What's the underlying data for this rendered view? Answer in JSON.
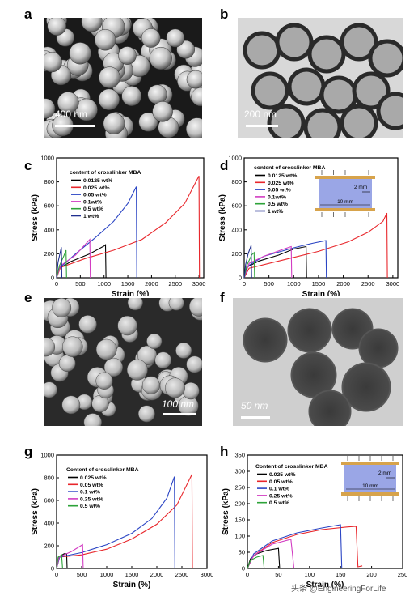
{
  "panels": {
    "a": {
      "letter": "a",
      "scale": "400 nm"
    },
    "b": {
      "letter": "b",
      "scale": "200 nm"
    },
    "c": {
      "letter": "c"
    },
    "d": {
      "letter": "d"
    },
    "e": {
      "letter": "e",
      "scale": "100 nm"
    },
    "f": {
      "letter": "f",
      "scale": "50 nm"
    },
    "g": {
      "letter": "g"
    },
    "h": {
      "letter": "h"
    }
  },
  "watermark": "头条 @EngineeringForLife",
  "inset": {
    "gap": "2 mm",
    "length": "10 mm"
  },
  "chart_data": [
    {
      "id": "c",
      "type": "line",
      "xlabel": "Strain (%)",
      "ylabel": "Stress (kPa)",
      "xlim": [
        0,
        3100
      ],
      "ylim": [
        0,
        1000
      ],
      "xticks": [
        0,
        500,
        1000,
        1500,
        2000,
        2500,
        3000
      ],
      "yticks": [
        0,
        200,
        400,
        600,
        800,
        1000
      ],
      "legend_title": "content of crosslinker MBA",
      "series": [
        {
          "name": "0.0125 wt%",
          "color": "#000000",
          "points": [
            [
              0,
              0
            ],
            [
              50,
              75
            ],
            [
              300,
              135
            ],
            [
              700,
              200
            ],
            [
              1000,
              265
            ],
            [
              1030,
              275
            ],
            [
              1040,
              0
            ]
          ]
        },
        {
          "name": "0.025 wt%",
          "color": "#e8262b",
          "points": [
            [
              0,
              0
            ],
            [
              80,
              85
            ],
            [
              600,
              160
            ],
            [
              1200,
              230
            ],
            [
              1800,
              320
            ],
            [
              2300,
              460
            ],
            [
              2700,
              620
            ],
            [
              3000,
              850
            ],
            [
              3010,
              0
            ]
          ]
        },
        {
          "name": "0.05 wt%",
          "color": "#2b45c4",
          "points": [
            [
              0,
              0
            ],
            [
              60,
              80
            ],
            [
              400,
              200
            ],
            [
              800,
              330
            ],
            [
              1200,
              470
            ],
            [
              1500,
              620
            ],
            [
              1680,
              760
            ],
            [
              1690,
              0
            ]
          ]
        },
        {
          "name": "0.1wt%",
          "color": "#d23cc2",
          "points": [
            [
              0,
              0
            ],
            [
              80,
              100
            ],
            [
              400,
              190
            ],
            [
              700,
              320
            ],
            [
              710,
              0
            ]
          ]
        },
        {
          "name": "0.5 wt%",
          "color": "#2da339",
          "points": [
            [
              0,
              0
            ],
            [
              60,
              100
            ],
            [
              150,
              180
            ],
            [
              200,
              230
            ],
            [
              210,
              0
            ]
          ]
        },
        {
          "name": "1 wt%",
          "color": "#1f2f8f",
          "points": [
            [
              0,
              0
            ],
            [
              30,
              130
            ],
            [
              70,
              200
            ],
            [
              100,
              255
            ],
            [
              110,
              0
            ]
          ]
        }
      ]
    },
    {
      "id": "d",
      "type": "line",
      "xlabel": "Strain (%)",
      "ylabel": "Stress (kPa)",
      "xlim": [
        0,
        3100
      ],
      "ylim": [
        0,
        1000
      ],
      "xticks": [
        0,
        500,
        1000,
        1500,
        2000,
        2500,
        3000
      ],
      "yticks": [
        0,
        200,
        400,
        600,
        800,
        1000
      ],
      "legend_title": "content of crosslinker MBA",
      "series": [
        {
          "name": "0.0125 wt%",
          "color": "#000000",
          "points": [
            [
              0,
              0
            ],
            [
              60,
              90
            ],
            [
              300,
              140
            ],
            [
              700,
              190
            ],
            [
              1000,
              240
            ],
            [
              1250,
              260
            ],
            [
              1260,
              0
            ]
          ]
        },
        {
          "name": "0.025 wt%",
          "color": "#e8262b",
          "points": [
            [
              0,
              0
            ],
            [
              100,
              80
            ],
            [
              800,
              150
            ],
            [
              1500,
              220
            ],
            [
              2100,
              300
            ],
            [
              2500,
              380
            ],
            [
              2800,
              470
            ],
            [
              2880,
              540
            ],
            [
              2890,
              0
            ]
          ]
        },
        {
          "name": "0.05 wt%",
          "color": "#2b45c4",
          "points": [
            [
              0,
              0
            ],
            [
              80,
              100
            ],
            [
              400,
              180
            ],
            [
              1000,
              250
            ],
            [
              1400,
              290
            ],
            [
              1650,
              310
            ],
            [
              1660,
              0
            ]
          ]
        },
        {
          "name": "0.1wt%",
          "color": "#d23cc2",
          "points": [
            [
              0,
              0
            ],
            [
              100,
              120
            ],
            [
              400,
              180
            ],
            [
              800,
              240
            ],
            [
              950,
              260
            ],
            [
              960,
              0
            ]
          ]
        },
        {
          "name": "0.5 wt%",
          "color": "#2da339",
          "points": [
            [
              0,
              0
            ],
            [
              50,
              100
            ],
            [
              150,
              190
            ],
            [
              200,
              210
            ],
            [
              210,
              0
            ]
          ]
        },
        {
          "name": "1 wt%",
          "color": "#1f2f8f",
          "points": [
            [
              0,
              0
            ],
            [
              30,
              110
            ],
            [
              80,
              200
            ],
            [
              140,
              270
            ],
            [
              150,
              0
            ]
          ]
        }
      ]
    },
    {
      "id": "g",
      "type": "line",
      "xlabel": "Strain (%)",
      "ylabel": "Stress (kPa)",
      "xlim": [
        0,
        3000
      ],
      "ylim": [
        0,
        1000
      ],
      "xticks": [
        0,
        500,
        1000,
        1500,
        2000,
        2500,
        3000
      ],
      "yticks": [
        0,
        200,
        400,
        600,
        800,
        1000
      ],
      "legend_title": "Content of crosslinker MBA",
      "series": [
        {
          "name": "0.025 wt%",
          "color": "#000000",
          "points": [
            [
              0,
              0
            ],
            [
              40,
              100
            ],
            [
              150,
              130
            ],
            [
              200,
              130
            ],
            [
              210,
              0
            ]
          ]
        },
        {
          "name": "0.05 wt%",
          "color": "#e8262b",
          "points": [
            [
              0,
              0
            ],
            [
              60,
              100
            ],
            [
              500,
              120
            ],
            [
              1000,
              170
            ],
            [
              1500,
              260
            ],
            [
              2000,
              390
            ],
            [
              2400,
              560
            ],
            [
              2700,
              830
            ],
            [
              2710,
              0
            ]
          ]
        },
        {
          "name": "0.1 wt%",
          "color": "#2b45c4",
          "points": [
            [
              0,
              0
            ],
            [
              60,
              100
            ],
            [
              500,
              140
            ],
            [
              1000,
              210
            ],
            [
              1500,
              310
            ],
            [
              1900,
              440
            ],
            [
              2200,
              620
            ],
            [
              2350,
              810
            ],
            [
              2360,
              0
            ]
          ]
        },
        {
          "name": "0.25 wt%",
          "color": "#d23cc2",
          "points": [
            [
              0,
              0
            ],
            [
              50,
              100
            ],
            [
              300,
              150
            ],
            [
              520,
              210
            ],
            [
              530,
              0
            ]
          ]
        },
        {
          "name": "0.5 wt%",
          "color": "#2da339",
          "points": [
            [
              0,
              0
            ],
            [
              30,
              100
            ],
            [
              100,
              120
            ],
            [
              120,
              0
            ]
          ]
        }
      ]
    },
    {
      "id": "h",
      "type": "line",
      "xlabel": "Strain (%)",
      "ylabel": "Stress (kPa)",
      "xlim": [
        0,
        250
      ],
      "ylim": [
        0,
        350
      ],
      "xticks": [
        0,
        50,
        100,
        150,
        200,
        250
      ],
      "yticks": [
        0,
        50,
        100,
        150,
        200,
        250,
        300,
        350
      ],
      "legend_title": "Content of crosslinker MBA",
      "series": [
        {
          "name": "0.025 wt%",
          "color": "#000000",
          "points": [
            [
              0,
              0
            ],
            [
              5,
              30
            ],
            [
              15,
              45
            ],
            [
              30,
              55
            ],
            [
              50,
              62
            ],
            [
              52,
              0
            ]
          ]
        },
        {
          "name": "0.05 wt%",
          "color": "#e8262b",
          "points": [
            [
              0,
              0
            ],
            [
              10,
              40
            ],
            [
              40,
              80
            ],
            [
              80,
              105
            ],
            [
              120,
              120
            ],
            [
              160,
              128
            ],
            [
              175,
              130
            ],
            [
              178,
              5
            ],
            [
              185,
              8
            ]
          ]
        },
        {
          "name": "0.1 wt%",
          "color": "#2b45c4",
          "points": [
            [
              0,
              0
            ],
            [
              10,
              45
            ],
            [
              40,
              85
            ],
            [
              80,
              110
            ],
            [
              120,
              125
            ],
            [
              150,
              135
            ],
            [
              152,
              0
            ]
          ]
        },
        {
          "name": "0.25 wt%",
          "color": "#d23cc2",
          "points": [
            [
              0,
              0
            ],
            [
              10,
              40
            ],
            [
              40,
              75
            ],
            [
              70,
              90
            ],
            [
              75,
              0
            ]
          ]
        },
        {
          "name": "0.5 wt%",
          "color": "#2da339",
          "points": [
            [
              0,
              0
            ],
            [
              5,
              25
            ],
            [
              15,
              35
            ],
            [
              25,
              40
            ],
            [
              27,
              0
            ]
          ]
        }
      ]
    }
  ]
}
